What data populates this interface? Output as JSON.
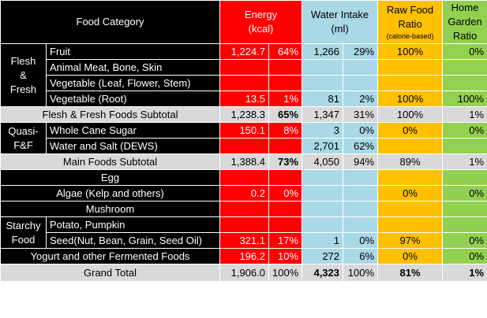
{
  "header": {
    "category": "Food Category",
    "energy": [
      "Energy",
      "(kcal)"
    ],
    "water": [
      "Water Intake",
      "(ml)"
    ],
    "raw": [
      "Raw Food",
      "Ratio",
      "(calorie-based)"
    ],
    "garden": [
      "Home",
      "Garden",
      "Ratio"
    ]
  },
  "groups": {
    "flesh": [
      "Flesh",
      "&",
      "Fresh"
    ],
    "quasi": [
      "Quasi-",
      "F&F"
    ],
    "starchy": [
      "Starchy",
      "Food"
    ]
  },
  "rows": {
    "fruit": {
      "label": "Fruit",
      "kcal": "1,224.7",
      "kcal_pct": "64%",
      "ml": "1,266",
      "ml_pct": "29%",
      "raw": "100%",
      "garden": "0%"
    },
    "meat": {
      "label": "Animal Meat, Bone, Skin"
    },
    "veg_leaf": {
      "label": "Vegetable (Leaf, Flower, Stem)"
    },
    "veg_root": {
      "label": "Vegetable (Root)",
      "kcal": "13.5",
      "kcal_pct": "1%",
      "ml": "81",
      "ml_pct": "2%",
      "raw": "100%",
      "garden": "100%"
    },
    "sub_flesh": {
      "label": "Flesh & Fresh Foods Subtotal",
      "kcal": "1,238.3",
      "kcal_pct": "65%",
      "ml": "1,347",
      "ml_pct": "31%",
      "raw": "100%",
      "garden": "1%"
    },
    "sugar": {
      "label": "Whole Cane Sugar",
      "kcal": "150.1",
      "kcal_pct": "8%",
      "ml": "3",
      "ml_pct": "0%",
      "raw": "0%",
      "garden": "0%"
    },
    "water_salt": {
      "label": "Water and Salt (DEWS)",
      "ml": "2,701",
      "ml_pct": "62%"
    },
    "sub_main": {
      "label": "Main Foods Subtotal",
      "kcal": "1,388.4",
      "kcal_pct": "73%",
      "ml": "4,050",
      "ml_pct": "94%",
      "raw": "89%",
      "garden": "1%"
    },
    "egg": {
      "label": "Egg"
    },
    "algae": {
      "label": "Algae (Kelp and others)",
      "kcal": "0.2",
      "kcal_pct": "0%",
      "raw": "0%",
      "garden": "0%"
    },
    "mushroom": {
      "label": "Mushroom"
    },
    "potato": {
      "label": "Potato, Pumpkin"
    },
    "seed": {
      "label": "Seed(Nut, Bean, Grain, Seed Oil)",
      "kcal": "321.1",
      "kcal_pct": "17%",
      "ml": "1",
      "ml_pct": "0%",
      "raw": "97%",
      "garden": "0%"
    },
    "yogurt": {
      "label": "Yogurt and other Fermented Foods",
      "kcal": "196.2",
      "kcal_pct": "10%",
      "ml": "272",
      "ml_pct": "6%",
      "raw": "0%",
      "garden": "0%"
    },
    "total": {
      "label": "Grand Total",
      "kcal": "1,906.0",
      "kcal_pct": "100%",
      "ml": "4,323",
      "ml_pct": "100%",
      "raw": "81%",
      "garden": "1%"
    }
  },
  "colors": {
    "energy": "#ff0000",
    "water": "#a9d8e6",
    "raw": "#ffc000",
    "garden": "#92d050",
    "subtotal": "#d9d9d9",
    "category": "#000000"
  }
}
